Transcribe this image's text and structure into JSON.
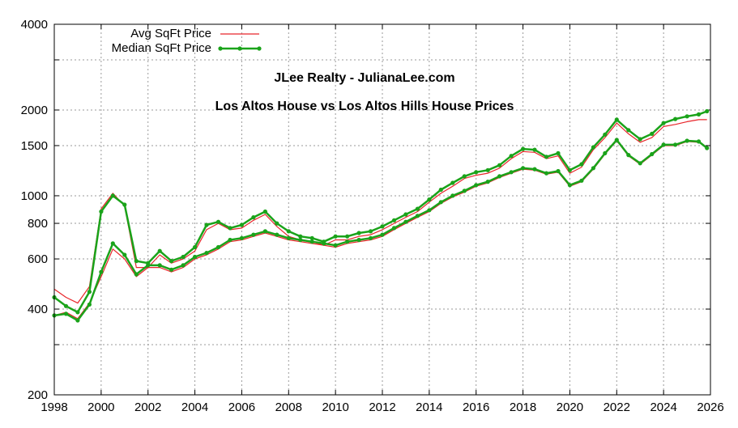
{
  "chart_data": {
    "type": "line",
    "title": "JLee Realty - JulianaLee.com",
    "subtitle": "Los Altos House vs Los Altos Hills House Prices",
    "xlabel": "",
    "ylabel": "",
    "xlim": [
      1998,
      2026
    ],
    "ylim": [
      200,
      4000
    ],
    "y_scale": "log",
    "grid": true,
    "legend_position": "top-left",
    "x_ticks": [
      "1998",
      "2000",
      "2002",
      "2004",
      "2006",
      "2008",
      "2010",
      "2012",
      "2014",
      "2016",
      "2018",
      "2020",
      "2022",
      "2024",
      "2026"
    ],
    "y_ticks": [
      {
        "value": 200,
        "label": "200"
      },
      {
        "value": 300,
        "label": ""
      },
      {
        "value": 400,
        "label": "400"
      },
      {
        "value": 600,
        "label": "600"
      },
      {
        "value": 800,
        "label": "800"
      },
      {
        "value": 1000,
        "label": "1000"
      },
      {
        "value": 1500,
        "label": "1500"
      },
      {
        "value": 2000,
        "label": "2000"
      },
      {
        "value": 3000,
        "label": ""
      },
      {
        "value": 4000,
        "label": "4000"
      }
    ],
    "x": [
      1998,
      1998.5,
      1999,
      1999.5,
      2000,
      2000.5,
      2001,
      2001.5,
      2002,
      2002.5,
      2003,
      2003.5,
      2004,
      2004.5,
      2005,
      2005.5,
      2006,
      2006.5,
      2007,
      2007.5,
      2008,
      2008.5,
      2009,
      2009.5,
      2010,
      2010.5,
      2011,
      2011.5,
      2012,
      2012.5,
      2013,
      2013.5,
      2014,
      2014.5,
      2015,
      2015.5,
      2016,
      2016.5,
      2017,
      2017.5,
      2018,
      2018.5,
      2019,
      2019.5,
      2020,
      2020.5,
      2021,
      2021.5,
      2022,
      2022.5,
      2023,
      2023.5,
      2024,
      2024.5,
      2025,
      2025.5,
      2025.85
    ],
    "series": [
      {
        "name": "Avg SqFt Price",
        "group": "Los Altos",
        "color": "#e8252a",
        "marker": false,
        "values": [
          470,
          440,
          420,
          480,
          900,
          1020,
          920,
          560,
          560,
          620,
          580,
          600,
          640,
          760,
          800,
          760,
          770,
          820,
          860,
          780,
          720,
          700,
          690,
          670,
          700,
          700,
          720,
          730,
          760,
          800,
          840,
          880,
          950,
          1020,
          1080,
          1150,
          1180,
          1200,
          1250,
          1350,
          1430,
          1420,
          1350,
          1380,
          1200,
          1260,
          1450,
          1600,
          1800,
          1650,
          1540,
          1600,
          1750,
          1780,
          1820,
          1850,
          1850
        ]
      },
      {
        "name": "Median SqFt Price",
        "group": "Los Altos",
        "color": "#1aa31a",
        "marker": true,
        "values": [
          440,
          410,
          390,
          460,
          880,
          1000,
          930,
          590,
          580,
          640,
          590,
          610,
          660,
          790,
          810,
          770,
          790,
          840,
          880,
          800,
          750,
          720,
          710,
          690,
          720,
          720,
          740,
          750,
          780,
          820,
          860,
          900,
          970,
          1050,
          1110,
          1170,
          1210,
          1230,
          1280,
          1380,
          1460,
          1450,
          1370,
          1410,
          1230,
          1290,
          1480,
          1640,
          1850,
          1700,
          1580,
          1650,
          1800,
          1860,
          1900,
          1930,
          1980
        ]
      },
      {
        "name": "Avg SqFt Price",
        "group": "Los Altos Hills",
        "color": "#e8252a",
        "marker": false,
        "values": [
          380,
          390,
          370,
          420,
          520,
          650,
          600,
          520,
          560,
          560,
          540,
          560,
          600,
          620,
          650,
          690,
          700,
          720,
          740,
          720,
          700,
          690,
          680,
          670,
          660,
          680,
          690,
          700,
          720,
          760,
          800,
          840,
          880,
          940,
          990,
          1030,
          1080,
          1110,
          1160,
          1200,
          1240,
          1230,
          1190,
          1210,
          1080,
          1120,
          1240,
          1400,
          1560,
          1380,
          1290,
          1390,
          1500,
          1500,
          1550,
          1540,
          1480
        ]
      },
      {
        "name": "Median SqFt Price",
        "group": "Los Altos Hills",
        "color": "#1aa31a",
        "marker": true,
        "values": [
          380,
          385,
          365,
          415,
          540,
          680,
          620,
          530,
          570,
          570,
          550,
          570,
          610,
          630,
          660,
          700,
          710,
          730,
          750,
          730,
          710,
          700,
          690,
          680,
          670,
          690,
          700,
          710,
          730,
          770,
          810,
          850,
          890,
          950,
          1000,
          1040,
          1090,
          1120,
          1170,
          1210,
          1250,
          1240,
          1200,
          1220,
          1090,
          1130,
          1250,
          1410,
          1570,
          1390,
          1300,
          1400,
          1510,
          1510,
          1560,
          1550,
          1470
        ]
      }
    ]
  }
}
